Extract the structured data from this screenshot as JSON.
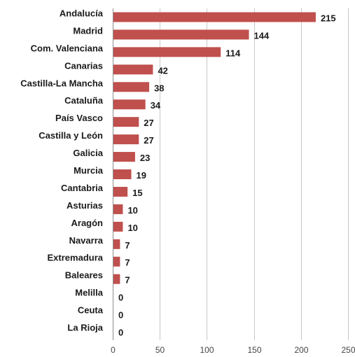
{
  "chart_data": {
    "type": "bar",
    "orientation": "horizontal",
    "categories": [
      "Andalucía",
      "Madrid",
      "Com. Valenciana",
      "Canarias",
      "Castilla-La Mancha",
      "Cataluña",
      "País Vasco",
      "Castilla y León",
      "Galicia",
      "Murcia",
      "Cantabria",
      "Asturias",
      "Aragón",
      "Navarra",
      "Extremadura",
      "Baleares",
      "Melilla",
      "Ceuta",
      "La Rioja"
    ],
    "values": [
      215,
      144,
      114,
      42,
      38,
      34,
      27,
      27,
      23,
      19,
      15,
      10,
      10,
      7,
      7,
      7,
      0,
      0,
      0
    ],
    "xlim": [
      0,
      250
    ],
    "xticks": [
      0,
      50,
      100,
      150,
      200,
      250
    ],
    "grid": true,
    "data_labels": true,
    "bar_color": "#c0504d"
  }
}
